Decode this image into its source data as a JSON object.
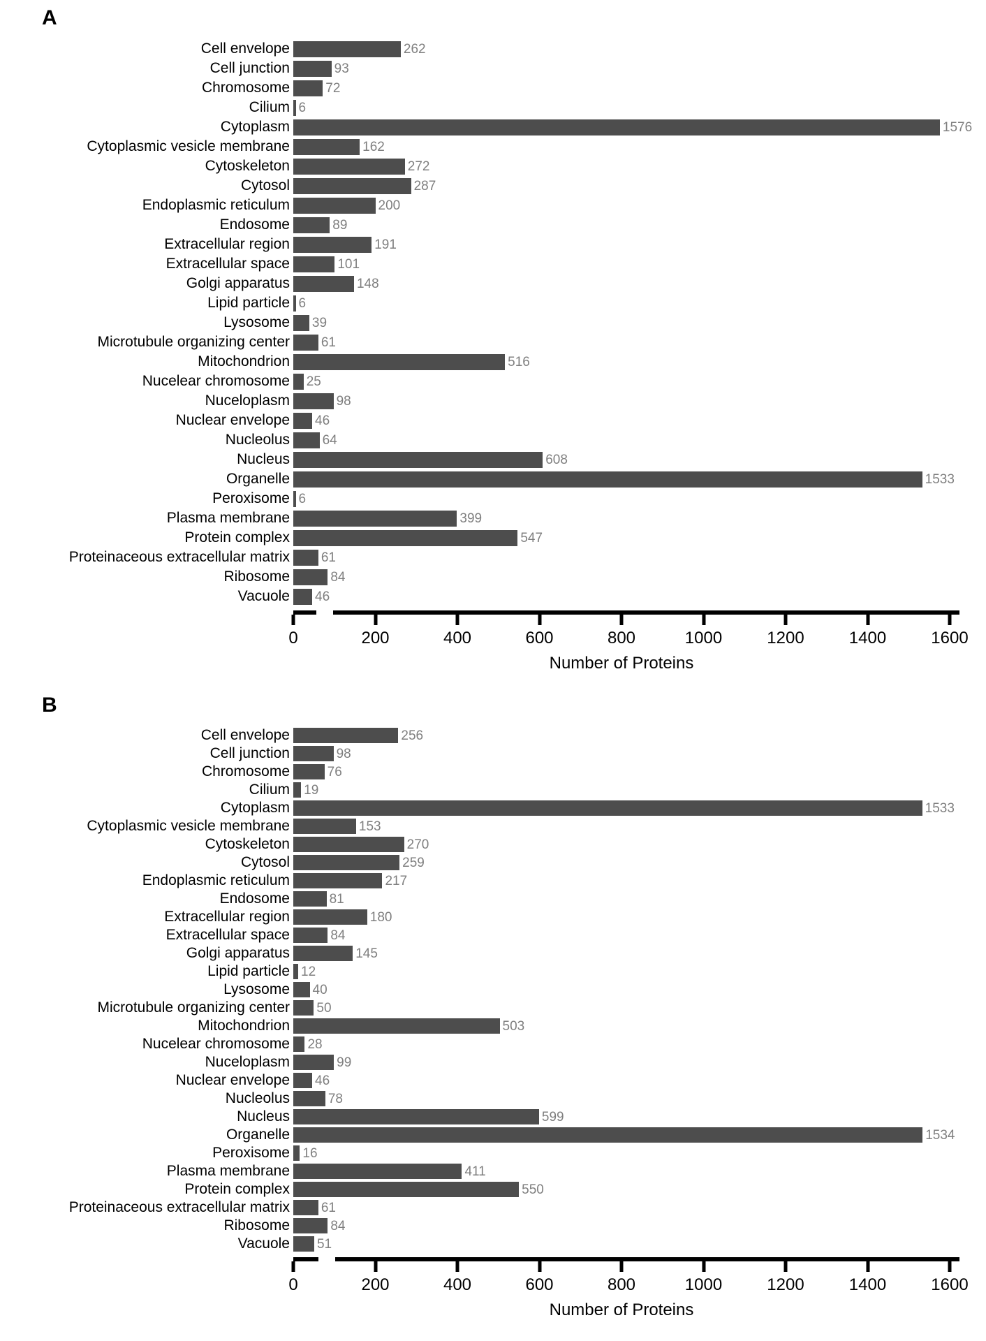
{
  "colors": {
    "bar": "#4d4d4d",
    "value_label": "#7f7f7f",
    "axis": "#000000",
    "background": "#ffffff"
  },
  "chart_data": [
    {
      "type": "bar",
      "panel_label": "A",
      "orientation": "horizontal",
      "title": "",
      "xlabel": "Number of Proteins",
      "ylabel": "",
      "xlim": [
        0,
        1600
      ],
      "x_ticks": [
        0,
        200,
        400,
        600,
        800,
        1000,
        1200,
        1400,
        1600
      ],
      "grid": false,
      "legend": false,
      "categories": [
        "Cell envelope",
        "Cell junction",
        "Chromosome",
        "Cilium",
        "Cytoplasm",
        "Cytoplasmic vesicle membrane",
        "Cytoskeleton",
        "Cytosol",
        "Endoplasmic reticulum",
        "Endosome",
        "Extracellular region",
        "Extracellular space",
        "Golgi apparatus",
        "Lipid particle",
        "Lysosome",
        "Microtubule organizing center",
        "Mitochondrion",
        "Nucelear chromosome",
        "Nuceloplasm",
        "Nuclear envelope",
        "Nucleolus",
        "Nucleus",
        "Organelle",
        "Peroxisome",
        "Plasma membrane",
        "Protein complex",
        "Proteinaceous extracellular matrix",
        "Ribosome",
        "Vacuole"
      ],
      "values": [
        262,
        93,
        72,
        6,
        1576,
        162,
        272,
        287,
        200,
        89,
        191,
        101,
        148,
        6,
        39,
        61,
        516,
        25,
        98,
        46,
        64,
        608,
        1533,
        6,
        399,
        547,
        61,
        84,
        46
      ]
    },
    {
      "type": "bar",
      "panel_label": "B",
      "orientation": "horizontal",
      "title": "",
      "xlabel": "Number of Proteins",
      "ylabel": "",
      "xlim": [
        0,
        1600
      ],
      "x_ticks": [
        0,
        200,
        400,
        600,
        800,
        1000,
        1200,
        1400,
        1600
      ],
      "grid": false,
      "legend": false,
      "categories": [
        "Cell envelope",
        "Cell junction",
        "Chromosome",
        "Cilium",
        "Cytoplasm",
        "Cytoplasmic vesicle membrane",
        "Cytoskeleton",
        "Cytosol",
        "Endoplasmic reticulum",
        "Endosome",
        "Extracellular region",
        "Extracellular space",
        "Golgi apparatus",
        "Lipid particle",
        "Lysosome",
        "Microtubule organizing center",
        "Mitochondrion",
        "Nucelear chromosome",
        "Nuceloplasm",
        "Nuclear envelope",
        "Nucleolus",
        "Nucleus",
        "Organelle",
        "Peroxisome",
        "Plasma membrane",
        "Protein complex",
        "Proteinaceous extracellular matrix",
        "Ribosome",
        "Vacuole"
      ],
      "values": [
        256,
        98,
        76,
        19,
        1533,
        153,
        270,
        259,
        217,
        81,
        180,
        84,
        145,
        12,
        40,
        50,
        503,
        28,
        99,
        46,
        78,
        599,
        1534,
        16,
        411,
        550,
        61,
        84,
        51
      ]
    }
  ]
}
